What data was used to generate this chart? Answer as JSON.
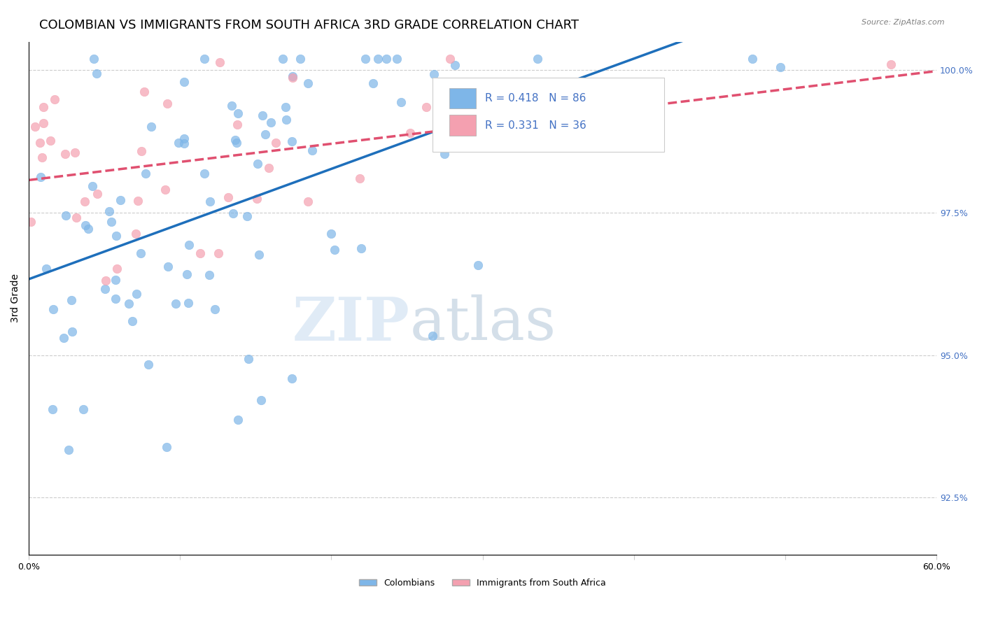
{
  "title": "COLOMBIAN VS IMMIGRANTS FROM SOUTH AFRICA 3RD GRADE CORRELATION CHART",
  "source": "Source: ZipAtlas.com",
  "ylabel": "3rd Grade",
  "xlim": [
    0.0,
    0.6
  ],
  "ylim": [
    0.915,
    1.005
  ],
  "xticks": [
    0.0,
    0.1,
    0.2,
    0.3,
    0.4,
    0.5,
    0.6
  ],
  "xticklabels": [
    "0.0%",
    "",
    "",
    "",
    "",
    "",
    "60.0%"
  ],
  "yticks": [
    0.925,
    0.95,
    0.975,
    1.0
  ],
  "yticklabels": [
    "92.5%",
    "95.0%",
    "97.5%",
    "100.0%"
  ],
  "colombian_color": "#7EB6E8",
  "sa_color": "#F4A0B0",
  "colombian_line_color": "#1E6FBB",
  "sa_line_color": "#E05070",
  "r_colombian": 0.418,
  "n_colombian": 86,
  "r_sa": 0.331,
  "n_sa": 36,
  "watermark_zip": "ZIP",
  "watermark_atlas": "atlas",
  "background_color": "#ffffff",
  "grid_color": "#cccccc",
  "right_label_color": "#4472C4",
  "title_fontsize": 13,
  "axis_fontsize": 10,
  "tick_fontsize": 9
}
